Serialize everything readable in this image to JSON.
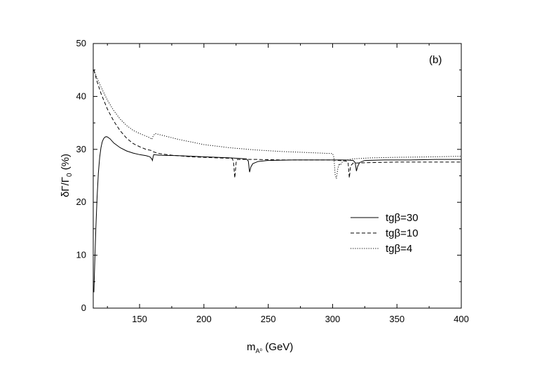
{
  "chart_data": {
    "type": "line",
    "panel_label": "(b)",
    "xlabel": "m_{A⁰} (GeV)",
    "xlabel_main": "m",
    "xlabel_sub": "A⁰",
    "xlabel_unit": " (GeV)",
    "ylabel": "δΓ/Γ₀ (%)",
    "ylabel_main": "δΓ/Γ",
    "ylabel_sub": "0",
    "ylabel_unit": " (%)",
    "xlim": [
      114,
      400
    ],
    "ylim": [
      0,
      50
    ],
    "x_ticks": [
      150,
      200,
      250,
      300,
      350,
      400
    ],
    "y_ticks": [
      0,
      10,
      20,
      30,
      40,
      50
    ],
    "grid": false,
    "legend_position": "center-right",
    "series": [
      {
        "name": "tgβ=30",
        "style": "solid",
        "points": [
          [
            114.5,
            3
          ],
          [
            115,
            7
          ],
          [
            116,
            15
          ],
          [
            117,
            21
          ],
          [
            118,
            25.5
          ],
          [
            119,
            28.5
          ],
          [
            120,
            30.3
          ],
          [
            121,
            31.4
          ],
          [
            122,
            32
          ],
          [
            123,
            32.3
          ],
          [
            124,
            32.4
          ],
          [
            125,
            32.35
          ],
          [
            127,
            32
          ],
          [
            130,
            31.2
          ],
          [
            135,
            30.3
          ],
          [
            140,
            29.7
          ],
          [
            145,
            29.3
          ],
          [
            150,
            29.0
          ],
          [
            155,
            28.8
          ],
          [
            158,
            28.6
          ],
          [
            159.5,
            28.2
          ],
          [
            160,
            27.9
          ],
          [
            160.5,
            28.6
          ],
          [
            161,
            29.0
          ],
          [
            165,
            28.9
          ],
          [
            180,
            28.8
          ],
          [
            200,
            28.6
          ],
          [
            220,
            28.4
          ],
          [
            233,
            28.2
          ],
          [
            234.5,
            27.8
          ],
          [
            235.5,
            25.7
          ],
          [
            236.5,
            26.7
          ],
          [
            238,
            27.3
          ],
          [
            242,
            27.7
          ],
          [
            250,
            27.9
          ],
          [
            270,
            28.0
          ],
          [
            290,
            28.0
          ],
          [
            310,
            28.0
          ],
          [
            316,
            27.9
          ],
          [
            317.5,
            27.5
          ],
          [
            318.5,
            25.9
          ],
          [
            319.5,
            26.8
          ],
          [
            321,
            27.5
          ],
          [
            325,
            27.9
          ],
          [
            340,
            28.0
          ],
          [
            360,
            28.0
          ],
          [
            380,
            28.1
          ],
          [
            400,
            28.1
          ]
        ]
      },
      {
        "name": "tgβ=10",
        "style": "dashed",
        "points": [
          [
            114.5,
            45
          ],
          [
            117,
            42.8
          ],
          [
            120,
            40.6
          ],
          [
            125,
            37.6
          ],
          [
            130,
            35.3
          ],
          [
            135,
            33.5
          ],
          [
            140,
            32.1
          ],
          [
            145,
            31.1
          ],
          [
            150,
            30.5
          ],
          [
            155,
            30.0
          ],
          [
            159,
            29.8
          ],
          [
            160,
            29.6
          ],
          [
            165,
            29.2
          ],
          [
            175,
            28.9
          ],
          [
            190,
            28.6
          ],
          [
            210,
            28.4
          ],
          [
            222,
            28.3
          ],
          [
            223,
            27.6
          ],
          [
            224,
            24.6
          ],
          [
            225,
            27.5
          ],
          [
            226,
            28.1
          ],
          [
            240,
            28.1
          ],
          [
            260,
            28.0
          ],
          [
            280,
            28.0
          ],
          [
            300,
            28.0
          ],
          [
            310,
            27.8
          ],
          [
            312,
            27.6
          ],
          [
            313,
            24.6
          ],
          [
            314,
            26.9
          ],
          [
            316,
            27.4
          ],
          [
            330,
            27.5
          ],
          [
            350,
            27.6
          ],
          [
            380,
            27.6
          ],
          [
            400,
            27.6
          ]
        ]
      },
      {
        "name": "tgβ=4",
        "style": "dotted",
        "points": [
          [
            114.5,
            45
          ],
          [
            117,
            43.5
          ],
          [
            120,
            41.8
          ],
          [
            125,
            39.3
          ],
          [
            130,
            37.3
          ],
          [
            135,
            35.7
          ],
          [
            140,
            34.5
          ],
          [
            145,
            33.6
          ],
          [
            150,
            33.0
          ],
          [
            155,
            32.5
          ],
          [
            158,
            32.2
          ],
          [
            159.5,
            31.9
          ],
          [
            160.5,
            32.5
          ],
          [
            162,
            33.0
          ],
          [
            170,
            32.5
          ],
          [
            180,
            31.9
          ],
          [
            200,
            30.9
          ],
          [
            220,
            30.3
          ],
          [
            240,
            29.9
          ],
          [
            260,
            29.6
          ],
          [
            280,
            29.4
          ],
          [
            300,
            29.2
          ],
          [
            301,
            28.5
          ],
          [
            302,
            25.2
          ],
          [
            303,
            24.5
          ],
          [
            304,
            26.3
          ],
          [
            305,
            27.3
          ],
          [
            306,
            27.0
          ],
          [
            308,
            27.8
          ],
          [
            315,
            28.2
          ],
          [
            330,
            28.4
          ],
          [
            350,
            28.5
          ],
          [
            380,
            28.6
          ],
          [
            400,
            28.7
          ]
        ]
      }
    ]
  }
}
